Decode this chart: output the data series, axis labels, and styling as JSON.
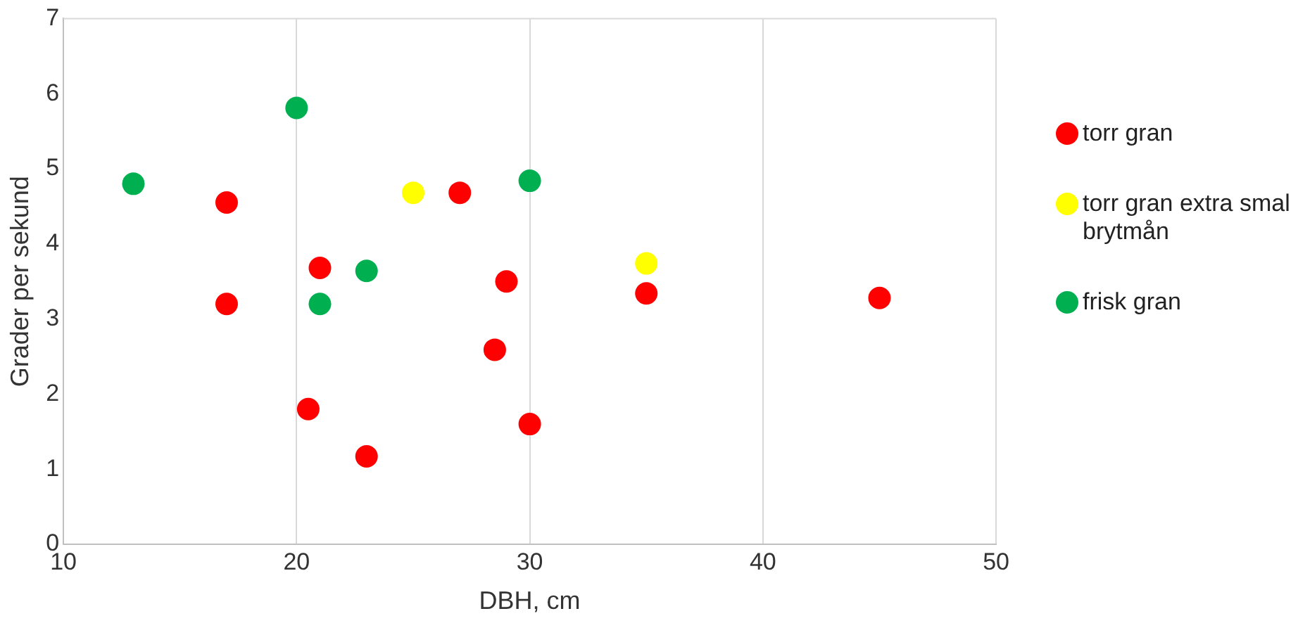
{
  "chart_data": {
    "type": "scatter",
    "xlabel": "DBH, cm",
    "ylabel": "Grader per sekund",
    "xlim": [
      10,
      50
    ],
    "xticks": [
      10,
      20,
      30,
      40,
      50
    ],
    "ylim": [
      0,
      7
    ],
    "yticks": [
      0,
      1,
      2,
      3,
      4,
      5,
      6,
      7
    ],
    "grid": "x",
    "legend": "right",
    "marker": "circle",
    "series": [
      {
        "name": "torr gran",
        "color": "#ff0000",
        "x": [
          17,
          17,
          21,
          20.5,
          23,
          27,
          29,
          28.5,
          30,
          35,
          45
        ],
        "values": [
          4.55,
          3.2,
          3.68,
          1.8,
          1.17,
          4.68,
          3.5,
          2.59,
          1.6,
          3.34,
          3.28
        ]
      },
      {
        "name": "torr gran extra smal brytmån",
        "color": "#ffff00",
        "x": [
          25,
          35
        ],
        "values": [
          4.68,
          3.74
        ]
      },
      {
        "name": "frisk gran",
        "color": "#00b050",
        "x": [
          13,
          20,
          21,
          23,
          30
        ],
        "values": [
          4.8,
          5.81,
          3.2,
          3.64,
          4.84
        ]
      }
    ]
  }
}
